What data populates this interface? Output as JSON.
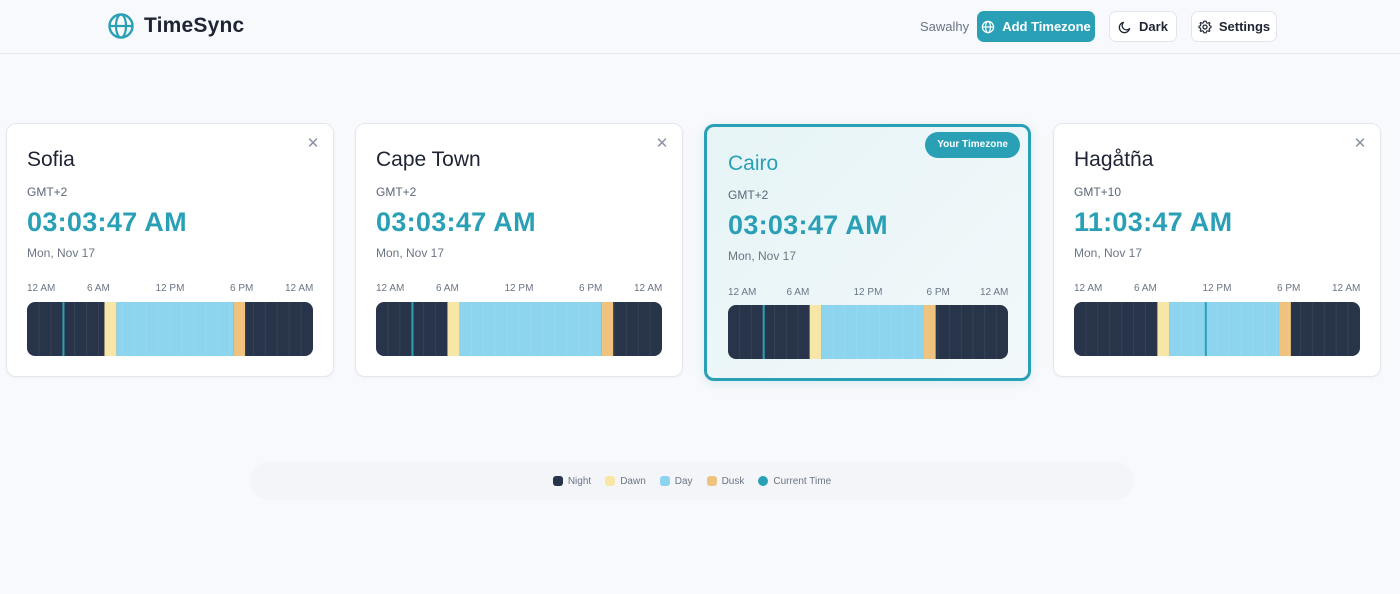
{
  "app": {
    "title": "TimeSync",
    "user": "Sawalhy"
  },
  "header": {
    "add_label": "Add Timezone",
    "dark_label": "Dark",
    "settings_label": "Settings"
  },
  "colors": {
    "accent": "#2aa0b6",
    "night": "#283449",
    "dawn": "#f7e6a6",
    "day": "#8dd5ef",
    "dusk": "#efc27d",
    "current": "#2aa0b6"
  },
  "ticks": [
    "12 AM",
    "6 AM",
    "12 PM",
    "6 PM",
    "12 AM"
  ],
  "cards": [
    {
      "city": "Sofia",
      "gmt": "GMT+2",
      "time": "03:03:47 AM",
      "date": "Mon, Nov 17",
      "home": false,
      "current_hour": 3.06,
      "dawn": [
        6.5,
        7.5
      ],
      "day": [
        7.5,
        17.3
      ],
      "dusk": [
        17.3,
        18.3
      ]
    },
    {
      "city": "Cape Town",
      "gmt": "GMT+2",
      "time": "03:03:47 AM",
      "date": "Mon, Nov 17",
      "home": false,
      "current_hour": 3.06,
      "dawn": [
        6.0,
        7.0
      ],
      "day": [
        7.0,
        18.9
      ],
      "dusk": [
        18.9,
        19.9
      ]
    },
    {
      "city": "Cairo",
      "gmt": "GMT+2",
      "badge": "Your Timezone",
      "time": "03:03:47 AM",
      "date": "Mon, Nov 17",
      "home": true,
      "current_hour": 3.06,
      "dawn": [
        7.0,
        8.0
      ],
      "day": [
        8.0,
        16.8
      ],
      "dusk": [
        16.8,
        17.8
      ]
    },
    {
      "city": "Hagåtña",
      "gmt": "GMT+10",
      "time": "11:03:47 AM",
      "date": "Mon, Nov 17",
      "home": false,
      "current_hour": 11.06,
      "dawn": [
        7.0,
        8.0
      ],
      "day": [
        8.0,
        17.2
      ],
      "dusk": [
        17.2,
        18.2
      ]
    }
  ],
  "legend": [
    {
      "label": "Night",
      "color": "#283449",
      "round": false
    },
    {
      "label": "Dawn",
      "color": "#f7e6a6",
      "round": false
    },
    {
      "label": "Day",
      "color": "#8dd5ef",
      "round": false
    },
    {
      "label": "Dusk",
      "color": "#efc27d",
      "round": false
    },
    {
      "label": "Current Time",
      "color": "#2aa0b6",
      "round": true
    }
  ]
}
